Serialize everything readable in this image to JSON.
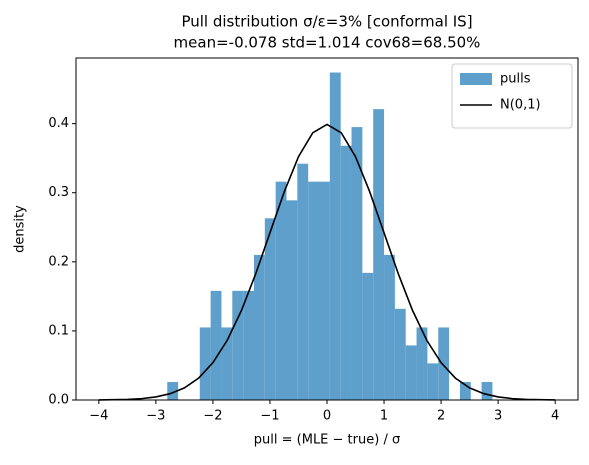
{
  "chart_data": {
    "type": "histogram",
    "title": "Pull distribution  σ/ε=3%  [conformal IS]",
    "subtitle": "mean=-0.078  std=1.014  cov68=68.50%",
    "xlabel": "pull = (MLE − true) / σ",
    "ylabel": "density",
    "name": "pulls",
    "color": "#5f9fcc",
    "bins": [
      -2.8,
      -2.61,
      -2.42,
      -2.23,
      -2.04,
      -1.85,
      -1.66,
      -1.47,
      -1.28,
      -1.09,
      -0.9,
      -0.71,
      -0.52,
      -0.33,
      -0.14,
      0.05,
      0.24,
      0.43,
      0.62,
      0.81,
      1.0,
      1.19,
      1.38,
      1.57,
      1.76,
      1.95,
      2.14,
      2.33,
      2.52,
      2.71,
      2.9
    ],
    "values": [
      0.026,
      0,
      0,
      0.105,
      0.158,
      0.105,
      0.158,
      0.158,
      0.21,
      0.263,
      0.316,
      0.289,
      0.342,
      0.316,
      0.316,
      0.474,
      0.368,
      0.395,
      0.184,
      0.421,
      0.21,
      0.132,
      0.079,
      0.105,
      0.053,
      0.105,
      0,
      0.026,
      0,
      0.026
    ],
    "line": {
      "type": "line",
      "name": "N(0,1)",
      "color": "#000000",
      "x": [
        -4,
        -3.75,
        -3.5,
        -3.25,
        -3,
        -2.75,
        -2.5,
        -2.25,
        -2,
        -1.75,
        -1.5,
        -1.25,
        -1,
        -0.75,
        -0.5,
        -0.25,
        0,
        0.25,
        0.5,
        0.75,
        1,
        1.25,
        1.5,
        1.75,
        2,
        2.25,
        2.5,
        2.75,
        3,
        3.25,
        3.5,
        3.75,
        4
      ],
      "values": [
        0.0001,
        0.0004,
        0.0009,
        0.002,
        0.0044,
        0.0091,
        0.0175,
        0.0317,
        0.054,
        0.0863,
        0.1295,
        0.1826,
        0.242,
        0.3011,
        0.3521,
        0.3867,
        0.3989,
        0.3867,
        0.3521,
        0.3011,
        0.242,
        0.1826,
        0.1295,
        0.0863,
        0.054,
        0.0317,
        0.0175,
        0.0091,
        0.0044,
        0.002,
        0.0009,
        0.0004,
        0.0001
      ]
    },
    "xlim": [
      -4.4,
      4.4
    ],
    "ylim": [
      0,
      0.495
    ],
    "xticks": [
      {
        "value": -4,
        "label": "−4"
      },
      {
        "value": -3,
        "label": "−3"
      },
      {
        "value": -2,
        "label": "−2"
      },
      {
        "value": -1,
        "label": "−1"
      },
      0,
      1,
      2,
      3,
      4
    ],
    "yticks": [
      {
        "value": 0,
        "label": "0.0"
      },
      0.1,
      0.2,
      0.3,
      0.4
    ],
    "legend": "upper right"
  }
}
